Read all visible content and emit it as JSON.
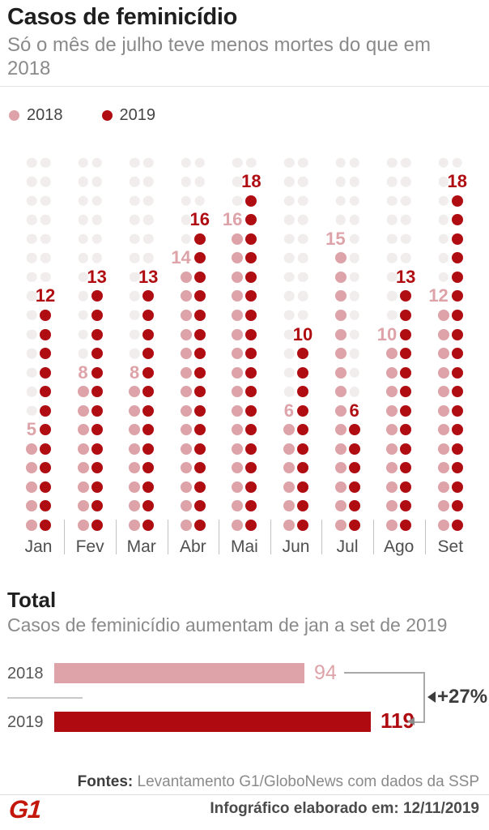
{
  "header": {
    "title": "Casos de feminicídio",
    "subtitle": "Só o mês de julho teve menos mortes do que em 2018"
  },
  "colors": {
    "accent_2018": "#dda3a8",
    "accent_2019": "#b00d12",
    "grid_dot": "#f1eded",
    "logo_red": "#c4170c"
  },
  "chart_data": [
    {
      "type": "bar",
      "variant": "dot-matrix",
      "categories": [
        "Jan",
        "Fev",
        "Mar",
        "Abr",
        "Mai",
        "Jun",
        "Jul",
        "Ago",
        "Set"
      ],
      "series": [
        {
          "name": "2018",
          "color": "#dda3a8",
          "values": [
            5,
            8,
            8,
            14,
            16,
            6,
            15,
            10,
            12
          ]
        },
        {
          "name": "2019",
          "color": "#b00d12",
          "values": [
            12,
            13,
            13,
            16,
            18,
            10,
            6,
            13,
            18
          ]
        }
      ],
      "ylim": [
        0,
        20
      ],
      "grid_rows": 20,
      "grid": "faint background dots",
      "legend_position": "top-left",
      "value_labels": "above each column top dot"
    },
    {
      "type": "bar",
      "orientation": "horizontal",
      "title": "Total",
      "subtitle": "Casos de feminicídio aumentam de jan a set de 2019",
      "categories": [
        "2018",
        "2019"
      ],
      "values": [
        94,
        119
      ],
      "colors": [
        "#dda3a8",
        "#ae0a0f"
      ],
      "annotation": "+27%",
      "xlim": [
        0,
        120
      ]
    }
  ],
  "footer": {
    "sources_label": "Fontes:",
    "sources_text": " Levantamento G1/GloboNews com dados da SSP",
    "made_on": "Infográfico elaborado em: 12/11/2019",
    "logo_text": "G1"
  }
}
